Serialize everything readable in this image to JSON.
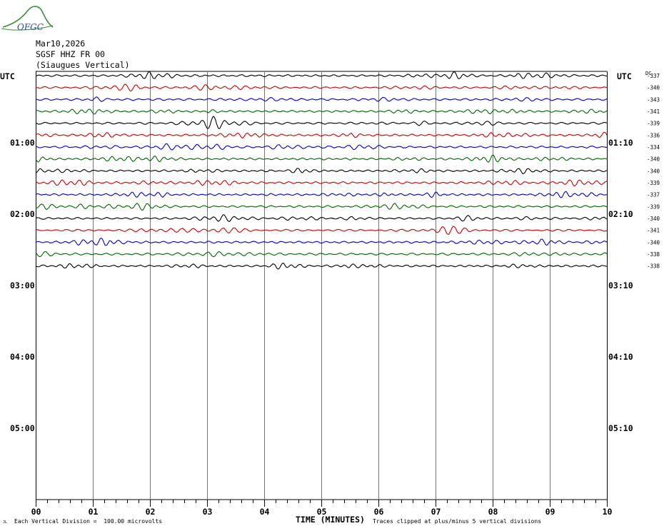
{
  "logo": {
    "text": "OFGC",
    "colors": {
      "hill": "#3a8a3a",
      "text": "#2a4a9a"
    }
  },
  "header": {
    "date": "Mar10,2026",
    "station": "SGSF HHZ FR 00",
    "description": "(Siaugues Vertical)"
  },
  "utc_left": "UTC",
  "utc_right": "UTC",
  "dc_label": "DC",
  "footer": {
    "left_mark": "JL",
    "scale_note": "Each Vertical Division =  100.00 microvolts",
    "clip_note": "Traces clipped at plus/minus 5 vertical divisions"
  },
  "chart_data": {
    "type": "line",
    "title": "",
    "xlabel": "TIME (MINUTES)",
    "xlim": [
      0,
      10
    ],
    "x_ticks": [
      "00",
      "01",
      "02",
      "03",
      "04",
      "05",
      "06",
      "07",
      "08",
      "09",
      "10"
    ],
    "left_hour_labels": [
      "01:00",
      "02:00",
      "03:00",
      "04:00",
      "05:00"
    ],
    "right_hour_labels": [
      "01:10",
      "02:10",
      "03:10",
      "04:10",
      "05:10"
    ],
    "rows_per_hour": 6,
    "total_rows": 36,
    "trace_colors": [
      "#000000",
      "#cc0000",
      "#0000cc",
      "#006600"
    ],
    "dc_offsets": [
      "-337",
      "-340",
      "-343",
      "-341",
      "-339",
      "-336",
      "-334",
      "-340",
      "-340",
      "-339",
      "-337",
      "-339",
      "-340",
      "-341",
      "-340",
      "-338",
      "-338"
    ],
    "grid": true
  }
}
